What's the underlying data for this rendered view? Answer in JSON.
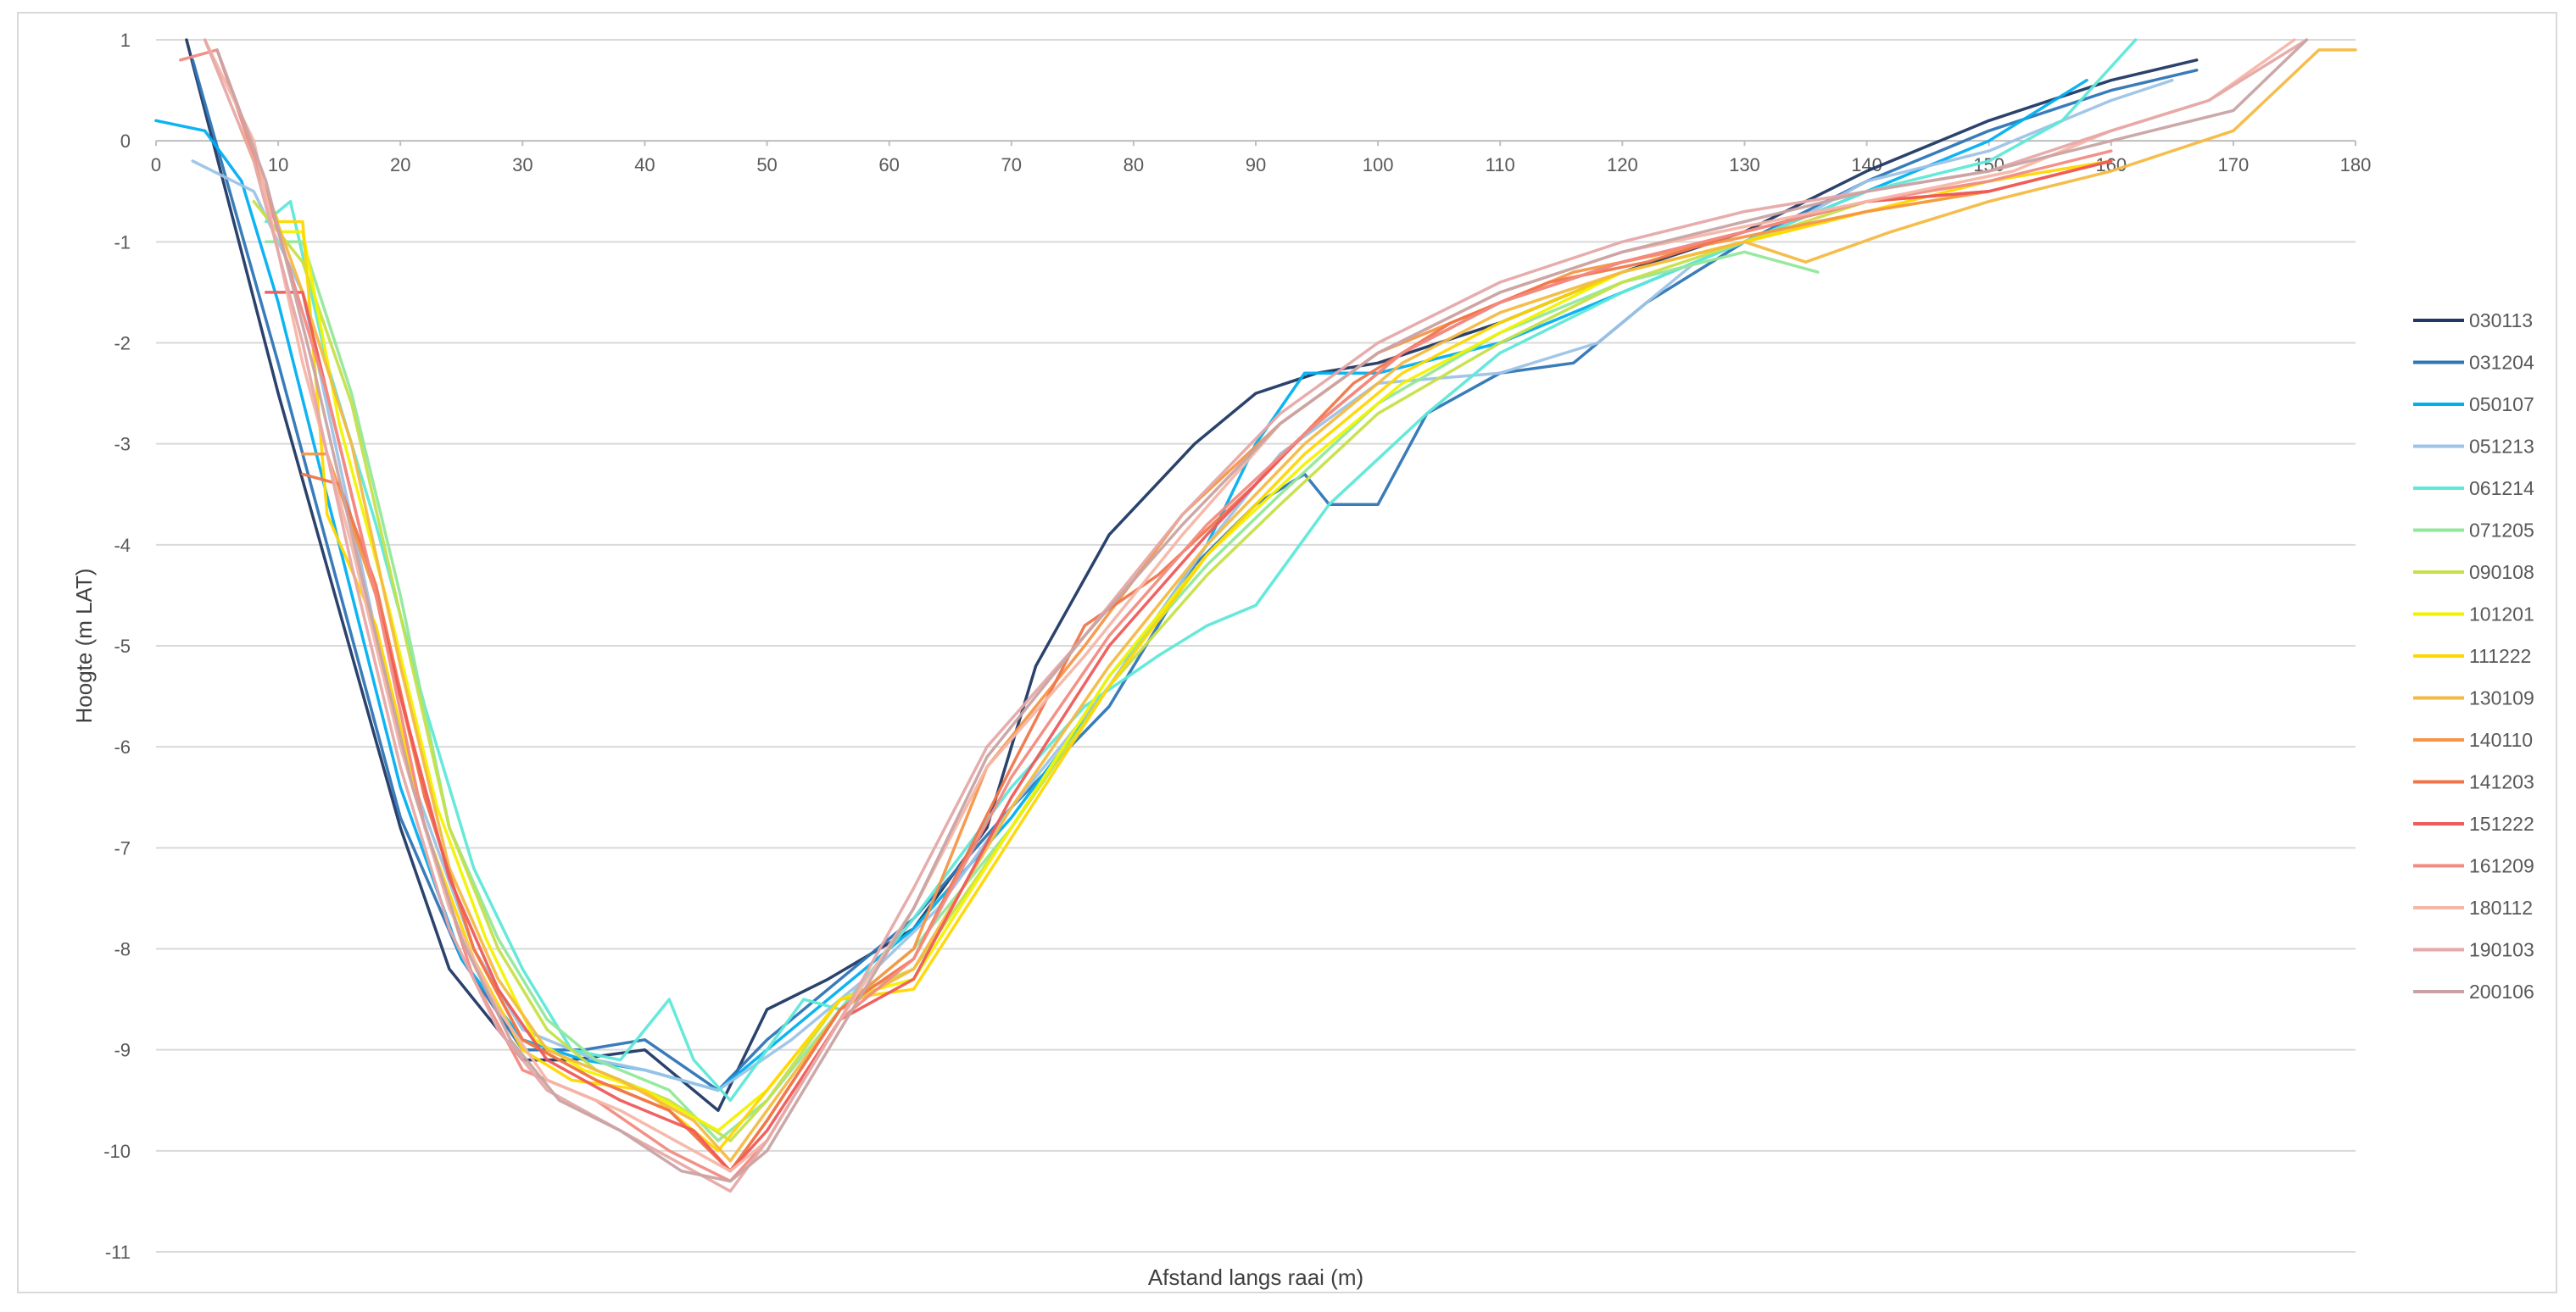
{
  "chart_data": {
    "type": "line",
    "xlabel": "Afstand langs raai (m)",
    "ylabel": "Hoogte (m LAT)",
    "xlim": [
      0,
      180
    ],
    "ylim": [
      -11,
      1
    ],
    "xticks": [
      0,
      10,
      20,
      30,
      40,
      50,
      60,
      70,
      80,
      90,
      100,
      110,
      120,
      130,
      140,
      150,
      160,
      170,
      180
    ],
    "yticks": [
      1,
      0,
      -1,
      -2,
      -3,
      -4,
      -5,
      -6,
      -7,
      -8,
      -9,
      -10,
      -11
    ],
    "grid": "horizontal",
    "legend": "right",
    "series": [
      {
        "name": "030113",
        "color": "#1f3864",
        "x": [
          2.5,
          10,
          20,
          24,
          30,
          34,
          40,
          46,
          50,
          55,
          62,
          68,
          72,
          78,
          85,
          90,
          95,
          100,
          110,
          120,
          130,
          140,
          150,
          160,
          167
        ],
        "y": [
          1.0,
          -2.5,
          -6.8,
          -8.2,
          -9.1,
          -9.1,
          -9.0,
          -9.6,
          -8.6,
          -8.3,
          -7.8,
          -6.8,
          -5.2,
          -3.9,
          -3.0,
          -2.5,
          -2.3,
          -2.2,
          -1.8,
          -1.3,
          -0.9,
          -0.3,
          0.2,
          0.6,
          0.8
        ]
      },
      {
        "name": "031204",
        "color": "#2e75b6",
        "x": [
          3,
          10,
          20,
          25,
          30,
          35,
          40,
          46,
          50,
          55,
          62,
          70,
          78,
          85,
          90,
          94,
          96,
          100,
          104,
          110,
          116,
          122,
          130,
          140,
          150,
          160,
          167
        ],
        "y": [
          0.8,
          -2.2,
          -6.7,
          -8.1,
          -9.0,
          -9.0,
          -8.9,
          -9.4,
          -8.9,
          -8.4,
          -7.7,
          -6.6,
          -5.6,
          -4.2,
          -3.6,
          -3.3,
          -3.6,
          -3.6,
          -2.7,
          -2.3,
          -2.2,
          -1.6,
          -1.0,
          -0.4,
          0.1,
          0.5,
          0.7
        ]
      },
      {
        "name": "050107",
        "color": "#00b0f0",
        "x": [
          0,
          4,
          7,
          10,
          20,
          25,
          30,
          35,
          40,
          46,
          50,
          56,
          62,
          70,
          78,
          86,
          90,
          94,
          100,
          110,
          120,
          130,
          140,
          150,
          158
        ],
        "y": [
          0.2,
          0.1,
          -0.4,
          -1.6,
          -6.4,
          -8.1,
          -8.9,
          -9.1,
          -9.2,
          -9.4,
          -9.0,
          -8.4,
          -7.8,
          -6.7,
          -5.4,
          -4.0,
          -3.0,
          -2.3,
          -2.3,
          -2.0,
          -1.5,
          -1.0,
          -0.5,
          0.0,
          0.6
        ]
      },
      {
        "name": "051213",
        "color": "#9dc3e6",
        "x": [
          3,
          8,
          12,
          20,
          26,
          30,
          36,
          40,
          46,
          52,
          58,
          64,
          70,
          78,
          86,
          92,
          100,
          110,
          118,
          126,
          134,
          140,
          150,
          160,
          165
        ],
        "y": [
          -0.2,
          -0.5,
          -1.5,
          -6.0,
          -8.0,
          -8.8,
          -9.1,
          -9.2,
          -9.4,
          -8.9,
          -8.3,
          -7.6,
          -6.6,
          -5.4,
          -4.0,
          -3.1,
          -2.4,
          -2.3,
          -2.0,
          -1.2,
          -0.8,
          -0.4,
          -0.1,
          0.4,
          0.6
        ]
      },
      {
        "name": "061214",
        "color": "#5ee8d8",
        "x": [
          9,
          11,
          14,
          18,
          22,
          26,
          30,
          34,
          38,
          42,
          44,
          47,
          50,
          53,
          56,
          62,
          70,
          76,
          82,
          86,
          90,
          96,
          104,
          110,
          120,
          130,
          140,
          150,
          156,
          162
        ],
        "y": [
          -0.8,
          -0.6,
          -2.2,
          -3.8,
          -5.6,
          -7.2,
          -8.2,
          -9.0,
          -9.1,
          -8.5,
          -9.1,
          -9.5,
          -9.0,
          -8.5,
          -8.6,
          -7.7,
          -6.4,
          -5.6,
          -5.1,
          -4.8,
          -4.6,
          -3.6,
          -2.7,
          -2.1,
          -1.5,
          -1.0,
          -0.5,
          -0.2,
          0.2,
          1.0
        ]
      },
      {
        "name": "071205",
        "color": "#92e89a",
        "x": [
          9,
          12,
          16,
          20,
          24,
          28,
          32,
          36,
          42,
          46,
          50,
          56,
          62,
          70,
          78,
          86,
          92,
          100,
          110,
          120,
          130,
          136
        ],
        "y": [
          -1.0,
          -1.0,
          -2.5,
          -4.5,
          -6.8,
          -7.9,
          -8.7,
          -9.1,
          -9.4,
          -9.9,
          -9.5,
          -8.6,
          -8.0,
          -6.8,
          -5.3,
          -4.2,
          -3.5,
          -2.6,
          -1.9,
          -1.4,
          -1.1,
          -1.3
        ]
      },
      {
        "name": "090108",
        "color": "#c6e048",
        "x": [
          8,
          12,
          16,
          20,
          24,
          28,
          32,
          36,
          42,
          47,
          50,
          56,
          62,
          70,
          78,
          86,
          92,
          100,
          110,
          120,
          130,
          140
        ],
        "y": [
          -0.6,
          -1.2,
          -2.6,
          -4.7,
          -6.8,
          -8.0,
          -8.8,
          -9.2,
          -9.5,
          -9.9,
          -9.5,
          -8.5,
          -8.2,
          -6.8,
          -5.4,
          -4.3,
          -3.6,
          -2.7,
          -2.0,
          -1.4,
          -1.0,
          -0.6
        ]
      },
      {
        "name": "101201",
        "color": "#f2f200",
        "x": [
          10,
          12,
          15,
          19,
          23,
          27,
          31,
          35,
          40,
          46,
          50,
          56,
          62,
          70,
          78,
          86,
          94,
          102,
          110,
          120,
          130,
          140,
          150
        ],
        "y": [
          -0.9,
          -0.9,
          -2.8,
          -4.6,
          -6.6,
          -7.9,
          -8.9,
          -9.2,
          -9.4,
          -9.8,
          -9.4,
          -8.5,
          -8.3,
          -6.8,
          -5.3,
          -4.1,
          -3.2,
          -2.4,
          -1.9,
          -1.3,
          -1.0,
          -0.7,
          -0.5
        ]
      },
      {
        "name": "111222",
        "color": "#ffd700",
        "x": [
          7,
          10,
          12,
          14,
          18,
          22,
          26,
          30,
          34,
          40,
          46,
          50,
          56,
          62,
          70,
          78,
          86,
          94,
          102,
          110,
          120,
          130,
          140,
          150,
          160
        ],
        "y": [
          0.1,
          -0.8,
          -0.8,
          -3.7,
          -4.8,
          -6.8,
          -8.1,
          -9.0,
          -9.3,
          -9.4,
          -10.0,
          -9.4,
          -8.5,
          -8.4,
          -6.9,
          -5.4,
          -4.1,
          -3.1,
          -2.3,
          -1.8,
          -1.3,
          -1.0,
          -0.7,
          -0.4,
          -0.2
        ]
      },
      {
        "name": "130109",
        "color": "#f4b942",
        "x": [
          9,
          12,
          16,
          20,
          24,
          28,
          32,
          38,
          44,
          47,
          50,
          56,
          62,
          70,
          78,
          86,
          94,
          102,
          110,
          120,
          130,
          135,
          142,
          150,
          160,
          170,
          177,
          180
        ],
        "y": [
          -0.5,
          -1.5,
          -3.0,
          -5.2,
          -7.2,
          -8.3,
          -9.0,
          -9.3,
          -9.7,
          -10.1,
          -9.6,
          -8.6,
          -8.2,
          -6.6,
          -5.2,
          -4.0,
          -3.0,
          -2.2,
          -1.7,
          -1.3,
          -1.0,
          -1.2,
          -0.9,
          -0.6,
          -0.3,
          0.1,
          0.9,
          0.9
        ]
      },
      {
        "name": "140110",
        "color": "#f79646",
        "x": [
          12,
          14,
          18,
          22,
          26,
          30,
          36,
          42,
          47,
          50,
          56,
          62,
          68,
          76,
          84,
          92,
          100,
          108,
          116,
          124,
          132,
          140,
          150,
          160
        ],
        "y": [
          -3.1,
          -3.1,
          -4.5,
          -6.5,
          -8.0,
          -8.9,
          -9.3,
          -9.6,
          -10.2,
          -9.7,
          -8.6,
          -8.0,
          -6.2,
          -5.0,
          -3.7,
          -2.8,
          -2.1,
          -1.7,
          -1.3,
          -1.1,
          -0.9,
          -0.7,
          -0.5,
          -0.2
        ]
      },
      {
        "name": "141203",
        "color": "#f0764a",
        "x": [
          12,
          15,
          18,
          22,
          26,
          30,
          36,
          42,
          47,
          50,
          56,
          62,
          70,
          76,
          82,
          90,
          98,
          106,
          114,
          122,
          130,
          140,
          150
        ],
        "y": [
          -3.3,
          -3.4,
          -4.4,
          -6.5,
          -8.0,
          -8.9,
          -9.3,
          -9.6,
          -10.2,
          -9.7,
          -8.6,
          -8.1,
          -6.2,
          -4.8,
          -4.3,
          -3.4,
          -2.4,
          -1.8,
          -1.4,
          -1.2,
          -0.9,
          -0.6,
          -0.5
        ]
      },
      {
        "name": "151222",
        "color": "#ef5a5a",
        "x": [
          9,
          12,
          16,
          20,
          24,
          28,
          32,
          38,
          44,
          47,
          50,
          56,
          62,
          70,
          78,
          86,
          94,
          102,
          110,
          120,
          130,
          140,
          150,
          160
        ],
        "y": [
          -1.5,
          -1.5,
          -3.5,
          -5.5,
          -7.3,
          -8.4,
          -9.1,
          -9.5,
          -9.8,
          -10.2,
          -9.8,
          -8.7,
          -8.3,
          -6.5,
          -5.0,
          -3.9,
          -2.9,
          -2.1,
          -1.6,
          -1.2,
          -0.9,
          -0.6,
          -0.5,
          -0.2
        ]
      },
      {
        "name": "161209",
        "color": "#f28b82",
        "x": [
          2,
          5,
          9,
          14,
          18,
          22,
          26,
          30,
          36,
          42,
          47,
          50,
          56,
          62,
          70,
          78,
          86,
          94,
          102,
          110,
          120,
          130,
          140,
          150,
          160
        ],
        "y": [
          0.8,
          0.9,
          -0.5,
          -2.5,
          -4.5,
          -6.8,
          -8.3,
          -9.2,
          -9.5,
          -10.0,
          -10.3,
          -9.9,
          -8.7,
          -8.1,
          -6.3,
          -4.9,
          -3.8,
          -2.9,
          -2.1,
          -1.6,
          -1.2,
          -0.9,
          -0.6,
          -0.4,
          -0.1
        ]
      },
      {
        "name": "180112",
        "color": "#f4b6a6",
        "x": [
          4,
          8,
          12,
          16,
          20,
          24,
          28,
          32,
          38,
          44,
          47,
          50,
          56,
          62,
          68,
          76,
          84,
          92,
          100,
          110,
          120,
          128,
          136,
          144,
          152,
          160,
          168,
          175
        ],
        "y": [
          1.0,
          0.0,
          -2.2,
          -4.0,
          -6.0,
          -7.6,
          -8.6,
          -9.3,
          -9.6,
          -10.0,
          -10.2,
          -9.9,
          -8.7,
          -7.6,
          -6.2,
          -5.1,
          -3.9,
          -2.8,
          -2.1,
          -1.5,
          -1.1,
          -0.9,
          -0.7,
          -0.5,
          -0.3,
          0.1,
          0.4,
          1.0
        ]
      },
      {
        "name": "190103",
        "color": "#e6a8a8",
        "x": [
          4,
          8,
          12,
          16,
          20,
          24,
          28,
          32,
          38,
          44,
          47,
          50,
          56,
          62,
          68,
          76,
          84,
          92,
          100,
          110,
          120,
          130,
          140,
          150,
          160,
          168,
          176
        ],
        "y": [
          1.0,
          -0.2,
          -2.0,
          -4.2,
          -6.2,
          -7.8,
          -8.8,
          -9.4,
          -9.8,
          -10.2,
          -10.4,
          -9.9,
          -8.7,
          -7.4,
          -6.0,
          -4.9,
          -3.7,
          -2.7,
          -2.0,
          -1.4,
          -1.0,
          -0.7,
          -0.5,
          -0.3,
          0.1,
          0.4,
          1.0
        ]
      },
      {
        "name": "200106",
        "color": "#c9a3a3",
        "x": [
          5,
          9,
          13,
          17,
          21,
          25,
          29,
          33,
          38,
          43,
          47,
          50,
          56,
          62,
          68,
          76,
          84,
          92,
          100,
          110,
          120,
          130,
          140,
          150,
          160,
          170,
          176
        ],
        "y": [
          0.9,
          -0.4,
          -2.3,
          -4.4,
          -6.4,
          -7.9,
          -8.9,
          -9.5,
          -9.8,
          -10.2,
          -10.3,
          -10.0,
          -8.8,
          -7.6,
          -6.1,
          -4.9,
          -3.8,
          -2.8,
          -2.1,
          -1.5,
          -1.1,
          -0.8,
          -0.5,
          -0.3,
          0.0,
          0.3,
          1.0
        ]
      }
    ]
  }
}
